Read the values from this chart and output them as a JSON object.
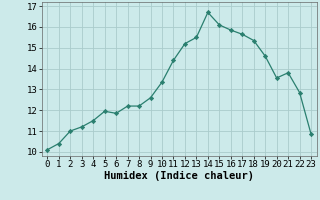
{
  "x": [
    0,
    1,
    2,
    3,
    4,
    5,
    6,
    7,
    8,
    9,
    10,
    11,
    12,
    13,
    14,
    15,
    16,
    17,
    18,
    19,
    20,
    21,
    22,
    23
  ],
  "y": [
    10.1,
    10.4,
    11.0,
    11.2,
    11.5,
    11.95,
    11.85,
    12.2,
    12.2,
    12.6,
    13.35,
    14.4,
    15.2,
    15.5,
    16.7,
    16.1,
    15.85,
    15.65,
    15.35,
    14.6,
    13.55,
    13.8,
    12.85,
    10.85
  ],
  "line_color": "#2a7f6f",
  "marker_color": "#2a7f6f",
  "bg_color": "#cceaea",
  "grid_color": "#aacccc",
  "xlabel": "Humidex (Indice chaleur)",
  "xlabel_fontsize": 7.5,
  "tick_fontsize": 6.5,
  "ylim": [
    9.8,
    17.2
  ],
  "xlim": [
    -0.5,
    23.5
  ],
  "yticks": [
    10,
    11,
    12,
    13,
    14,
    15,
    16,
    17
  ],
  "xticks": [
    0,
    1,
    2,
    3,
    4,
    5,
    6,
    7,
    8,
    9,
    10,
    11,
    12,
    13,
    14,
    15,
    16,
    17,
    18,
    19,
    20,
    21,
    22,
    23
  ]
}
